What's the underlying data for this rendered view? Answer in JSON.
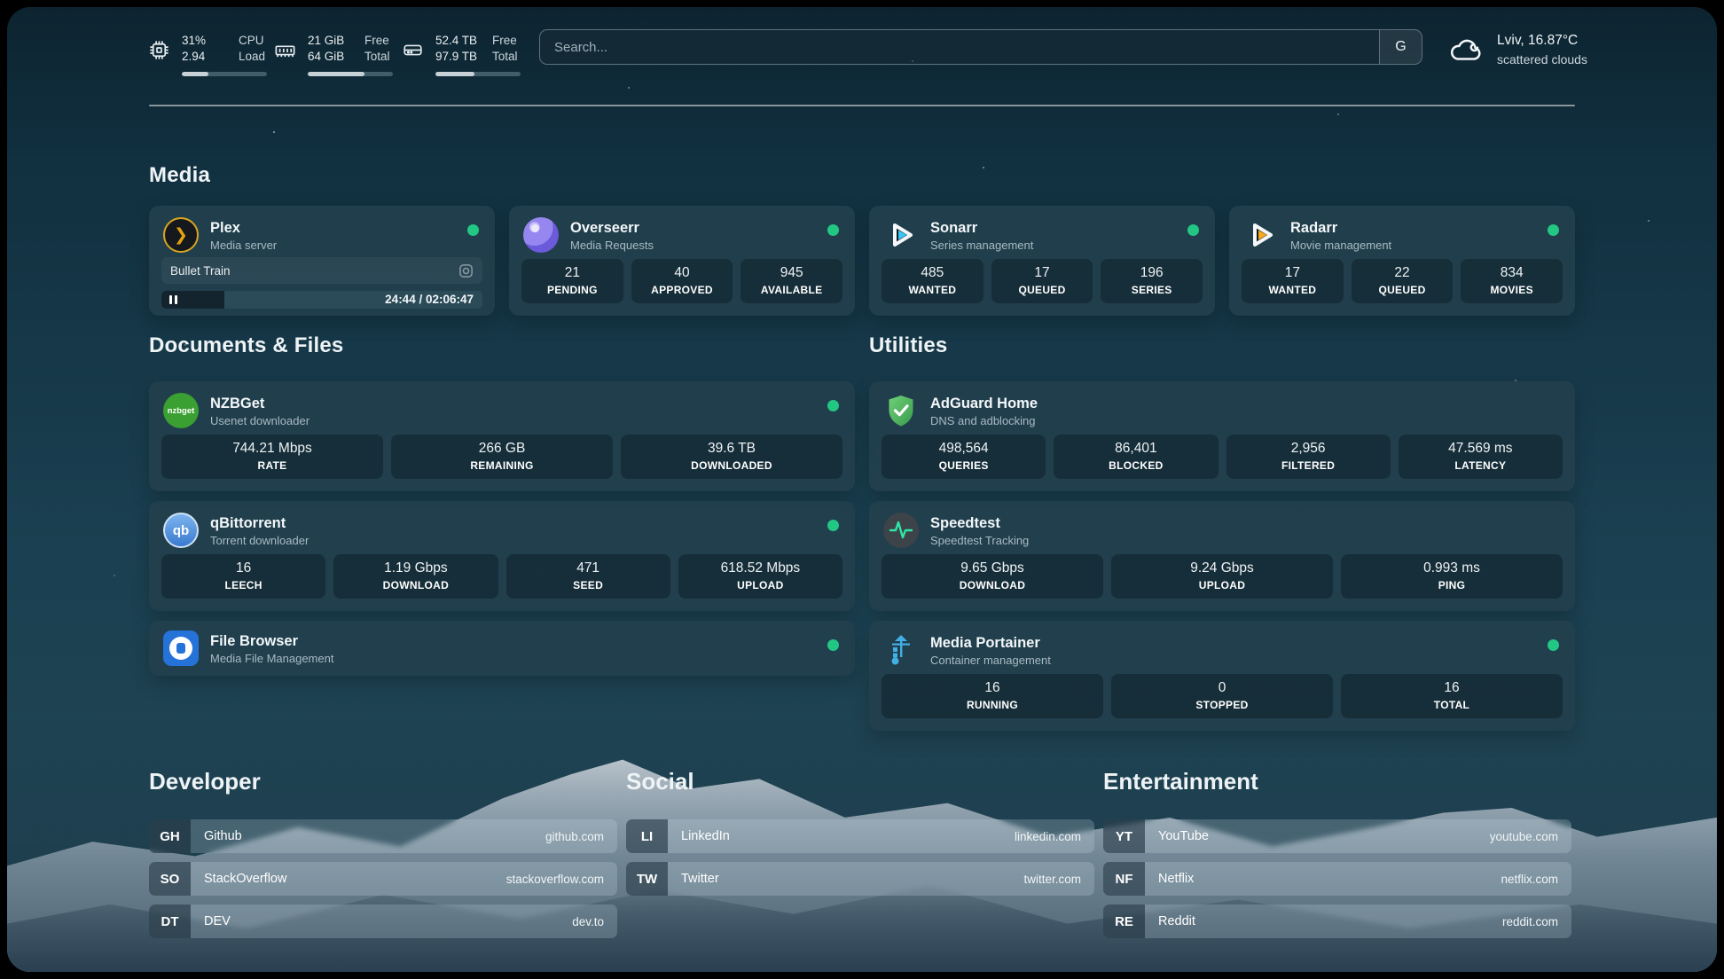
{
  "colors": {
    "status_online": "#22c784",
    "plex_accent": "#e5a00d",
    "background_teal": "#163848"
  },
  "header": {
    "cpu": {
      "icon": "cpu-icon",
      "value_top": "31%",
      "value_bottom": "2.94",
      "label_top": "CPU",
      "label_bottom": "Load",
      "percent": 31
    },
    "memory": {
      "icon": "ram-icon",
      "value_top": "21 GiB",
      "value_bottom": "64 GiB",
      "label_top": "Free",
      "label_bottom": "Total",
      "percent": 67
    },
    "disk": {
      "icon": "disk-icon",
      "value_top": "52.4 TB",
      "value_bottom": "97.9 TB",
      "label_top": "Free",
      "label_bottom": "Total",
      "percent": 46
    },
    "search": {
      "placeholder": "Search...",
      "engine_button": "G"
    },
    "weather": {
      "icon": "cloud-icon",
      "location": "Lviv, 16.87°C",
      "condition": "scattered clouds"
    }
  },
  "sections": {
    "media": "Media",
    "documents": "Documents & Files",
    "utilities": "Utilities",
    "developer": "Developer",
    "social": "Social",
    "entertainment": "Entertainment"
  },
  "apps": {
    "plex": {
      "name": "Plex",
      "desc": "Media server",
      "online": true,
      "now_playing": "Bullet Train",
      "time": "24:44 / 02:06:47",
      "progress_percent": 19.5
    },
    "overseerr": {
      "name": "Overseerr",
      "desc": "Media Requests",
      "online": true,
      "stats": [
        {
          "value": "21",
          "label": "PENDING"
        },
        {
          "value": "40",
          "label": "APPROVED"
        },
        {
          "value": "945",
          "label": "AVAILABLE"
        }
      ]
    },
    "sonarr": {
      "name": "Sonarr",
      "desc": "Series management",
      "online": true,
      "stats": [
        {
          "value": "485",
          "label": "WANTED"
        },
        {
          "value": "17",
          "label": "QUEUED"
        },
        {
          "value": "196",
          "label": "SERIES"
        }
      ]
    },
    "radarr": {
      "name": "Radarr",
      "desc": "Movie management",
      "online": true,
      "stats": [
        {
          "value": "17",
          "label": "WANTED"
        },
        {
          "value": "22",
          "label": "QUEUED"
        },
        {
          "value": "834",
          "label": "MOVIES"
        }
      ]
    },
    "nzbget": {
      "name": "NZBGet",
      "desc": "Usenet downloader",
      "online": true,
      "icon_text": "nzbget",
      "stats": [
        {
          "value": "744.21 Mbps",
          "label": "RATE"
        },
        {
          "value": "266 GB",
          "label": "REMAINING"
        },
        {
          "value": "39.6 TB",
          "label": "DOWNLOADED"
        }
      ]
    },
    "qbittorrent": {
      "name": "qBittorrent",
      "desc": "Torrent downloader",
      "online": true,
      "icon_text": "qb",
      "stats": [
        {
          "value": "16",
          "label": "LEECH"
        },
        {
          "value": "1.19 Gbps",
          "label": "DOWNLOAD"
        },
        {
          "value": "471",
          "label": "SEED"
        },
        {
          "value": "618.52 Mbps",
          "label": "UPLOAD"
        }
      ]
    },
    "filebrowser": {
      "name": "File Browser",
      "desc": "Media File Management",
      "online": true
    },
    "adguard": {
      "name": "AdGuard Home",
      "desc": "DNS and adblocking",
      "stats": [
        {
          "value": "498,564",
          "label": "QUERIES"
        },
        {
          "value": "86,401",
          "label": "BLOCKED"
        },
        {
          "value": "2,956",
          "label": "FILTERED"
        },
        {
          "value": "47.569 ms",
          "label": "LATENCY"
        }
      ]
    },
    "speedtest": {
      "name": "Speedtest",
      "desc": "Speedtest Tracking",
      "stats": [
        {
          "value": "9.65 Gbps",
          "label": "DOWNLOAD"
        },
        {
          "value": "9.24 Gbps",
          "label": "UPLOAD"
        },
        {
          "value": "0.993 ms",
          "label": "PING"
        }
      ]
    },
    "portainer": {
      "name": "Media Portainer",
      "desc": "Container management",
      "online": true,
      "stats": [
        {
          "value": "16",
          "label": "RUNNING"
        },
        {
          "value": "0",
          "label": "STOPPED"
        },
        {
          "value": "16",
          "label": "TOTAL"
        }
      ]
    }
  },
  "bookmarks": {
    "developer": [
      {
        "abbr": "GH",
        "name": "Github",
        "url": "github.com"
      },
      {
        "abbr": "SO",
        "name": "StackOverflow",
        "url": "stackoverflow.com"
      },
      {
        "abbr": "DT",
        "name": "DEV",
        "url": "dev.to"
      }
    ],
    "social": [
      {
        "abbr": "LI",
        "name": "LinkedIn",
        "url": "linkedin.com"
      },
      {
        "abbr": "TW",
        "name": "Twitter",
        "url": "twitter.com"
      }
    ],
    "entertainment": [
      {
        "abbr": "YT",
        "name": "YouTube",
        "url": "youtube.com"
      },
      {
        "abbr": "NF",
        "name": "Netflix",
        "url": "netflix.com"
      },
      {
        "abbr": "RE",
        "name": "Reddit",
        "url": "reddit.com"
      }
    ]
  }
}
